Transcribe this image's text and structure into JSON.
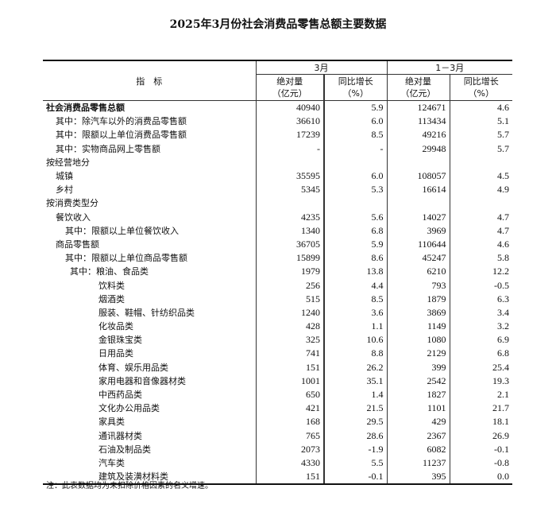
{
  "title": "2025年3月份社会消费品零售总额主要数据",
  "header": {
    "indicator": "指　标",
    "period1": "3月",
    "period2": "1－3月",
    "abs": "绝对量",
    "abs_unit": "（亿元）",
    "yoy": "同比增长",
    "yoy_unit": "（%）"
  },
  "rows": [
    {
      "label": "社会消费品零售总额",
      "level": 0,
      "bold": true,
      "v": [
        "40940",
        "5.9",
        "124671",
        "4.6"
      ]
    },
    {
      "label": "其中：除汽车以外的消费品零售额",
      "level": 1,
      "v": [
        "36610",
        "6.0",
        "113434",
        "5.1"
      ]
    },
    {
      "label": "其中：限额以上单位消费品零售额",
      "level": 1,
      "v": [
        "17239",
        "8.5",
        "49216",
        "5.7"
      ]
    },
    {
      "label": "其中：实物商品网上零售额",
      "level": 1,
      "v": [
        "-",
        "-",
        "29948",
        "5.7"
      ]
    },
    {
      "label": "按经营地分",
      "level": 0,
      "v": [
        "",
        "",
        "",
        ""
      ]
    },
    {
      "label": "城镇",
      "level": 1,
      "v": [
        "35595",
        "6.0",
        "108057",
        "4.5"
      ]
    },
    {
      "label": "乡村",
      "level": 1,
      "v": [
        "5345",
        "5.3",
        "16614",
        "4.9"
      ]
    },
    {
      "label": "按消费类型分",
      "level": 0,
      "v": [
        "",
        "",
        "",
        ""
      ]
    },
    {
      "label": "餐饮收入",
      "level": 1,
      "v": [
        "4235",
        "5.6",
        "14027",
        "4.7"
      ]
    },
    {
      "label": "其中：限额以上单位餐饮收入",
      "level": 2,
      "v": [
        "1340",
        "6.8",
        "3969",
        "4.7"
      ]
    },
    {
      "label": "商品零售额",
      "level": 1,
      "v": [
        "36705",
        "5.9",
        "110644",
        "4.6"
      ]
    },
    {
      "label": "其中：限额以上单位商品零售额",
      "level": 2,
      "v": [
        "15899",
        "8.6",
        "45247",
        "5.8"
      ]
    },
    {
      "label": "其中：粮油、食品类",
      "level": 3,
      "v": [
        "1979",
        "13.8",
        "6210",
        "12.2"
      ]
    },
    {
      "label": "饮料类",
      "level": 4,
      "v": [
        "256",
        "4.4",
        "793",
        "-0.5"
      ]
    },
    {
      "label": "烟酒类",
      "level": 4,
      "v": [
        "515",
        "8.5",
        "1879",
        "6.3"
      ]
    },
    {
      "label": "服装、鞋帽、针纺织品类",
      "level": 4,
      "v": [
        "1240",
        "3.6",
        "3869",
        "3.4"
      ]
    },
    {
      "label": "化妆品类",
      "level": 4,
      "v": [
        "428",
        "1.1",
        "1149",
        "3.2"
      ]
    },
    {
      "label": "金银珠宝类",
      "level": 4,
      "v": [
        "325",
        "10.6",
        "1080",
        "6.9"
      ]
    },
    {
      "label": "日用品类",
      "level": 4,
      "v": [
        "741",
        "8.8",
        "2129",
        "6.8"
      ]
    },
    {
      "label": "体育、娱乐用品类",
      "level": 4,
      "v": [
        "151",
        "26.2",
        "399",
        "25.4"
      ]
    },
    {
      "label": "家用电器和音像器材类",
      "level": 4,
      "v": [
        "1001",
        "35.1",
        "2542",
        "19.3"
      ]
    },
    {
      "label": "中西药品类",
      "level": 4,
      "v": [
        "650",
        "1.4",
        "1827",
        "2.1"
      ]
    },
    {
      "label": "文化办公用品类",
      "level": 4,
      "v": [
        "421",
        "21.5",
        "1101",
        "21.7"
      ]
    },
    {
      "label": "家具类",
      "level": 4,
      "v": [
        "168",
        "29.5",
        "429",
        "18.1"
      ]
    },
    {
      "label": "通讯器材类",
      "level": 4,
      "v": [
        "765",
        "28.6",
        "2367",
        "26.9"
      ]
    },
    {
      "label": "石油及制品类",
      "level": 4,
      "v": [
        "2073",
        "-1.9",
        "6082",
        "-0.1"
      ]
    },
    {
      "label": "汽车类",
      "level": 4,
      "v": [
        "4330",
        "5.5",
        "11237",
        "-0.8"
      ]
    },
    {
      "label": "建筑及装潢材料类",
      "level": 4,
      "v": [
        "151",
        "-0.1",
        "395",
        "0.0"
      ]
    }
  ],
  "note": "注：此表数据均为未扣除价格因素的名义增速。"
}
